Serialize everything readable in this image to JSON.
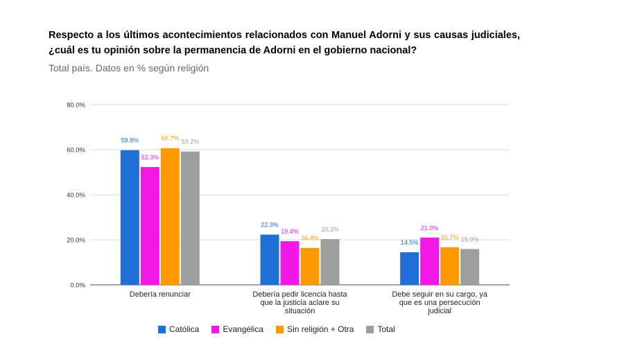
{
  "title": "Respecto a los últimos acontecimientos relacionados con Manuel Adorni y sus causas judiciales, ¿cuál es tu opinión sobre la permanencia de Adorni en el gobierno nacional?",
  "subtitle": "Total país. Datos en % según religión",
  "chart_data": {
    "type": "bar",
    "categories": [
      "Debería renunciar",
      "Debería pedir licencia hasta que la justicia aclare su situación",
      "Debe seguir en su cargo, ya que es una persecución judicial"
    ],
    "category_lines": [
      [
        "Debería renunciar"
      ],
      [
        "Debería pedir licencia hasta",
        "que la justicia aclare su",
        "situación"
      ],
      [
        "Debe seguir en su cargo, ya",
        "que es una persecución",
        "judicial"
      ]
    ],
    "series": [
      {
        "name": "Católica",
        "color": "#1f6fd6",
        "values": [
          59.8,
          22.3,
          14.5
        ],
        "labels": [
          "59.8%",
          "22.3%",
          "14.5%"
        ]
      },
      {
        "name": "Evangélica",
        "color": "#f219e6",
        "values": [
          52.3,
          19.4,
          21.0
        ],
        "labels": [
          "52.3%",
          "19.4%",
          "21.0%"
        ]
      },
      {
        "name": "Sin religión + Otra",
        "color": "#ff9900",
        "values": [
          60.7,
          16.4,
          16.7
        ],
        "labels": [
          "60.7%",
          "16.4%",
          "16.7%"
        ]
      },
      {
        "name": "Total",
        "color": "#9e9e9e",
        "values": [
          59.2,
          20.3,
          15.9
        ],
        "labels": [
          "59.2%",
          "20.3%",
          "15.9%"
        ]
      }
    ],
    "yticks": [
      "0.0%",
      "20.0%",
      "40.0%",
      "60.0%",
      "80.0%"
    ],
    "ytick_values": [
      0,
      20,
      40,
      60,
      80
    ],
    "ylim": [
      0,
      80
    ],
    "grid": true,
    "legend_position": "bottom"
  }
}
